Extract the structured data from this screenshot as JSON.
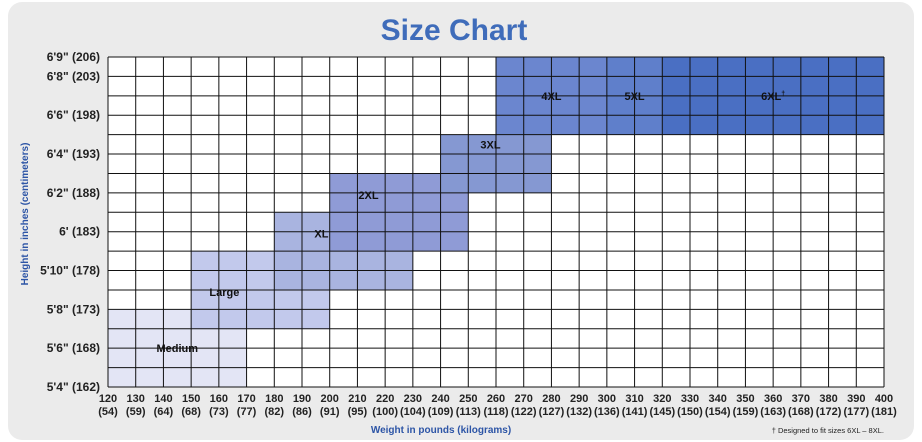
{
  "chart_data": {
    "type": "heatmap",
    "title": "Size Chart",
    "xlabel": "Weight in pounds (kilograms)",
    "ylabel": "Height in inches (centimeters)",
    "x_ticks": [
      120,
      130,
      140,
      150,
      160,
      170,
      180,
      190,
      200,
      210,
      220,
      230,
      240,
      250,
      260,
      270,
      280,
      290,
      300,
      310,
      320,
      330,
      340,
      350,
      360,
      370,
      380,
      390,
      400
    ],
    "x_tick_labels_kg": [
      "(54)",
      "(59)",
      "(64)",
      "(68)",
      "(73)",
      "(77)",
      "(82)",
      "(86)",
      "(91)",
      "(95)",
      "(100)",
      "(104)",
      "(109)",
      "(113)",
      "(118)",
      "(122)",
      "(127)",
      "(132)",
      "(136)",
      "(141)",
      "(145)",
      "(150)",
      "(154)",
      "(159)",
      "(163)",
      "(168)",
      "(172)",
      "(177)",
      "(181)"
    ],
    "y_ticks": [
      "5'4\" (162)",
      "5'6\" (168)",
      "5'8\" (173)",
      "5'10\" (178)",
      "6' (183)",
      "6'2\" (188)",
      "6'4\" (193)",
      "6'6\" (198)",
      "6'8\" (203)",
      "6'9\" (206)"
    ],
    "xlim": [
      120,
      400
    ],
    "ylim": [
      64,
      81
    ],
    "grid": true,
    "regions": [
      {
        "label": "Medium",
        "x": [
          120,
          170
        ],
        "y": [
          64,
          68
        ],
        "color": "#e3e5f5"
      },
      {
        "label": "Large",
        "x": [
          150,
          200
        ],
        "y": [
          67,
          71
        ],
        "color": "#c2c9ec"
      },
      {
        "label": "XL",
        "x": [
          180,
          230
        ],
        "y": [
          69,
          73
        ],
        "color": "#a9b4e0"
      },
      {
        "label": "2XL",
        "x": [
          200,
          250
        ],
        "y": [
          71,
          75
        ],
        "color": "#8f9bd6"
      },
      {
        "label": "3XL",
        "x": [
          240,
          280
        ],
        "y": [
          74,
          77
        ],
        "color": "#8598d2"
      },
      {
        "label": "4XL",
        "x": [
          260,
          340
        ],
        "y": [
          77,
          81
        ],
        "color": "#6b86cf"
      },
      {
        "label": "5XL",
        "x": [
          300,
          340
        ],
        "y": [
          77,
          81
        ],
        "color": "#5f7fcb"
      },
      {
        "label": "6XL",
        "x": [
          320,
          400
        ],
        "y": [
          77,
          81
        ],
        "color": "#4a6fc3"
      }
    ],
    "footnote": "† Designed to fit sizes 6XL – 8XL."
  },
  "colors": {
    "title": "#3f6cba",
    "axis_label": "#2d55a6",
    "background": "#ebebeb",
    "plot_background": "#ffffff",
    "grid": "#111111"
  }
}
